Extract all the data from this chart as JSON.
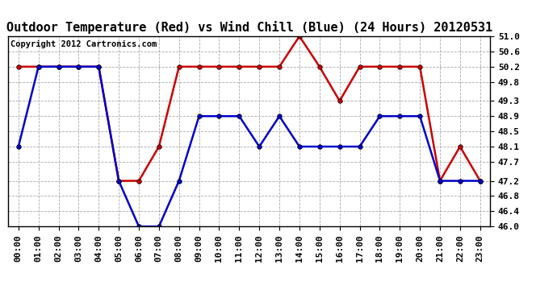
{
  "title": "Outdoor Temperature (Red) vs Wind Chill (Blue) (24 Hours) 20120531",
  "copyright": "Copyright 2012 Cartronics.com",
  "hours": [
    "00:00",
    "01:00",
    "02:00",
    "03:00",
    "04:00",
    "05:00",
    "06:00",
    "07:00",
    "08:00",
    "09:00",
    "10:00",
    "11:00",
    "12:00",
    "13:00",
    "14:00",
    "15:00",
    "16:00",
    "17:00",
    "18:00",
    "19:00",
    "20:00",
    "21:00",
    "22:00",
    "23:00"
  ],
  "red_temp": [
    50.2,
    50.2,
    50.2,
    50.2,
    50.2,
    47.2,
    47.2,
    48.1,
    50.2,
    50.2,
    50.2,
    50.2,
    50.2,
    50.2,
    51.0,
    50.2,
    49.3,
    50.2,
    50.2,
    50.2,
    50.2,
    47.2,
    48.1,
    47.2
  ],
  "blue_wind": [
    48.1,
    50.2,
    50.2,
    50.2,
    50.2,
    47.2,
    46.0,
    46.0,
    47.2,
    48.9,
    48.9,
    48.9,
    48.1,
    48.9,
    48.1,
    48.1,
    48.1,
    48.1,
    48.9,
    48.9,
    48.9,
    47.2,
    47.2,
    47.2
  ],
  "ylim_min": 46.0,
  "ylim_max": 51.0,
  "yticks": [
    46.0,
    46.4,
    46.8,
    47.2,
    47.7,
    48.1,
    48.5,
    48.9,
    49.3,
    49.8,
    50.2,
    50.6,
    51.0
  ],
  "bg_color": "#ffffff",
  "grid_color": "#aaaaaa",
  "red_color": "#cc0000",
  "blue_color": "#0000cc",
  "title_fontsize": 11,
  "tick_fontsize": 8,
  "copyright_fontsize": 7.5,
  "linewidth": 1.8,
  "markersize": 4
}
